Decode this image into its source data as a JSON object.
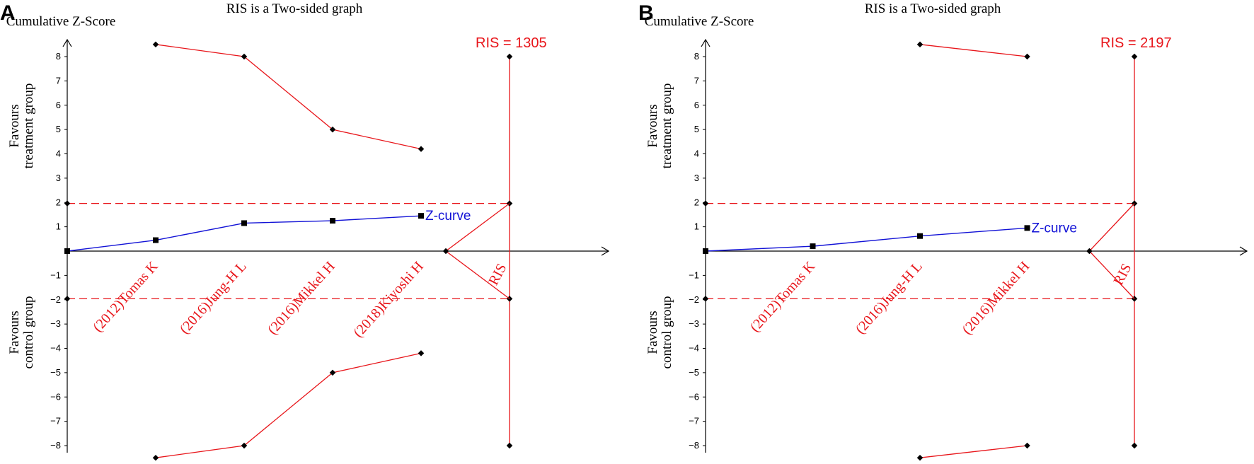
{
  "colors": {
    "boundary": "#e8161b",
    "zcurve": "#1212d6",
    "axis": "#000000"
  },
  "chart_data": [
    {
      "panel": "A",
      "type": "line",
      "title": "RIS is a Two-sided graph",
      "ylabel": "Cumulative Z-Score",
      "upper_label": [
        "Favours",
        "treatment group"
      ],
      "lower_label": [
        "Favours",
        "control group"
      ],
      "ylim": [
        -8,
        8
      ],
      "yticks": [
        -8,
        -7,
        -6,
        -5,
        -4,
        -3,
        -2,
        -1,
        1,
        2,
        3,
        4,
        5,
        6,
        7,
        8
      ],
      "x_slots": 5,
      "studies": [
        "(2012)Tomas K",
        "(2016)Jung-H L",
        "(2016)Mikkel H",
        "(2018)Kiyoshi H"
      ],
      "ris_label": "RIS = 1305",
      "ris_axis_text": "RIS",
      "ris_slot": 5,
      "futility_start_slot": 4.28,
      "conventional_z": 1.96,
      "z_curve": {
        "label": "Z-curve",
        "x": [
          0,
          1,
          2,
          3,
          4
        ],
        "y": [
          0,
          0.45,
          1.15,
          1.25,
          1.45
        ]
      },
      "upper_boundary": {
        "x": [
          1,
          2,
          3,
          4
        ],
        "y": [
          8.5,
          8.0,
          5.0,
          4.2
        ]
      },
      "lower_boundary": {
        "x": [
          1,
          2,
          3,
          4
        ],
        "y": [
          -8.5,
          -8.0,
          -5.0,
          -4.2
        ]
      },
      "ris_line": {
        "y_top": 8,
        "y_bottom": -8
      }
    },
    {
      "panel": "B",
      "type": "line",
      "title": "RIS is a Two-sided graph",
      "ylabel": "Cumulative Z-Score",
      "upper_label": [
        "Favours",
        "treatment group"
      ],
      "lower_label": [
        "Favours",
        "control group"
      ],
      "ylim": [
        -8,
        8
      ],
      "yticks": [
        -8,
        -7,
        -6,
        -5,
        -4,
        -3,
        -2,
        -1,
        1,
        2,
        3,
        4,
        5,
        6,
        7,
        8
      ],
      "x_slots": 4,
      "studies": [
        "(2012)Tomas K",
        "(2016)Jung-H L",
        "(2016)Mikkel H"
      ],
      "ris_label": "RIS = 2197",
      "ris_axis_text": "RIS",
      "ris_slot": 4,
      "futility_start_slot": 3.58,
      "conventional_z": 1.96,
      "z_curve": {
        "label": "Z-curve",
        "x": [
          0,
          1,
          2,
          3
        ],
        "y": [
          0,
          0.2,
          0.62,
          0.95
        ]
      },
      "upper_boundary": {
        "x": [
          2,
          3
        ],
        "y": [
          8.5,
          8.0
        ]
      },
      "lower_boundary": {
        "x": [
          2,
          3
        ],
        "y": [
          -8.5,
          -8.0
        ]
      },
      "ris_line": {
        "y_top": 8,
        "y_bottom": -8
      }
    }
  ]
}
